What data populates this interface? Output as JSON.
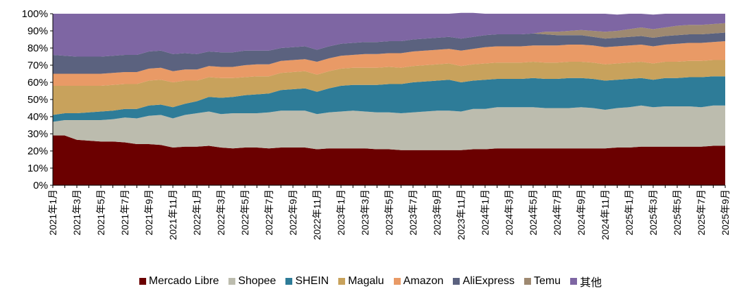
{
  "chart_data": {
    "type": "area",
    "stacked": true,
    "title": "",
    "xlabel": "",
    "ylabel": "",
    "ylim": [
      0,
      100
    ],
    "yticks": [
      "0%",
      "10%",
      "20%",
      "30%",
      "40%",
      "50%",
      "60%",
      "70%",
      "80%",
      "90%",
      "100%"
    ],
    "x": [
      "2021年1月",
      "2021年2月",
      "2021年3月",
      "2021年4月",
      "2021年5月",
      "2021年6月",
      "2021年7月",
      "2021年8月",
      "2021年9月",
      "2021年10月",
      "2021年11月",
      "2021年12月",
      "2022年1月",
      "2022年2月",
      "2022年3月",
      "2022年4月",
      "2022年5月",
      "2022年6月",
      "2022年7月",
      "2022年8月",
      "2022年9月",
      "2022年10月",
      "2022年11月",
      "2022年12月",
      "2023年1月",
      "2023年2月",
      "2023年3月",
      "2023年4月",
      "2023年5月",
      "2023年6月",
      "2023年7月",
      "2023年8月",
      "2023年9月",
      "2023年10月",
      "2023年11月",
      "2023年12月",
      "2024年1月",
      "2024年2月",
      "2024年3月",
      "2024年4月",
      "2024年5月",
      "2024年6月",
      "2024年7月",
      "2024年8月",
      "2024年9月",
      "2024年10月",
      "2024年11月",
      "2024年12月",
      "2025年1月",
      "2025年2月",
      "2025年3月",
      "2025年4月",
      "2025年5月",
      "2025年6月",
      "2025年7月",
      "2025年8月",
      "2025年9月"
    ],
    "xtick_labels": [
      "2021年1月",
      "2021年3月",
      "2021年5月",
      "2021年7月",
      "2021年9月",
      "2021年11月",
      "2022年1月",
      "2022年3月",
      "2022年5月",
      "2022年7月",
      "2022年9月",
      "2022年11月",
      "2023年1月",
      "2023年3月",
      "2023年5月",
      "2023年7月",
      "2023年9月",
      "2023年11月",
      "2024年1月",
      "2024年3月",
      "2024年5月",
      "2024年7月",
      "2024年9月",
      "2024年11月",
      "2025年1月",
      "2025年3月",
      "2025年5月",
      "2025年7月",
      "2025年9月"
    ],
    "legend_position": "bottom",
    "series": [
      {
        "name": "Mercado Libre",
        "color": "#6b0000",
        "values": [
          29,
          29,
          26.5,
          26,
          25.5,
          25.5,
          25,
          24,
          24,
          23.5,
          22,
          22.5,
          22.5,
          23,
          22,
          21.5,
          22,
          22,
          21.5,
          22,
          22,
          22,
          21,
          21.5,
          21.5,
          21.5,
          21.5,
          21,
          21,
          20.5,
          20.5,
          20.5,
          20.5,
          20.5,
          20.5,
          21,
          21,
          21.5,
          21.5,
          21.5,
          21.5,
          21.5,
          21.5,
          21.5,
          21.5,
          21.5,
          21.5,
          22,
          22,
          22.5,
          22.5,
          22.5,
          22.5,
          22.5,
          22.5,
          23,
          23
        ]
      },
      {
        "name": "Shopee",
        "color": "#bcbcae",
        "values": [
          8,
          9,
          11.5,
          12,
          12.5,
          13,
          14.5,
          15,
          16.5,
          17.5,
          17,
          18.5,
          19.5,
          20,
          19.5,
          20.5,
          20,
          20,
          21,
          21.5,
          21.5,
          21.5,
          20.5,
          21,
          21.5,
          22,
          21.5,
          21.5,
          21.5,
          21.5,
          22,
          22.5,
          23,
          23,
          22.5,
          23.5,
          23.5,
          24,
          24,
          24,
          24,
          23.5,
          23.5,
          23.5,
          24,
          23.5,
          22.5,
          23,
          23.5,
          24,
          23,
          23.5,
          23.5,
          23.5,
          23,
          23.5,
          23.5
        ]
      },
      {
        "name": "SHEIN",
        "color": "#2e7c98",
        "values": [
          4,
          4,
          4,
          4.5,
          5,
          5,
          5,
          5.5,
          6,
          6,
          6.5,
          6.5,
          7,
          8.5,
          9.5,
          9.5,
          10.5,
          11,
          11,
          12,
          12.5,
          13,
          13,
          14,
          15,
          15,
          15.5,
          16,
          16.5,
          17,
          17.5,
          17.5,
          17.5,
          18,
          17,
          16.5,
          17,
          16.5,
          16.5,
          16.5,
          17,
          17,
          17,
          17.5,
          17,
          17,
          17,
          16.5,
          16.5,
          16,
          16,
          16.5,
          16.5,
          17,
          17.5,
          17,
          17
        ]
      },
      {
        "name": "Magalu",
        "color": "#c8a25c",
        "values": [
          17,
          16,
          16,
          15.5,
          15,
          15,
          14.5,
          14.5,
          14.5,
          14.5,
          14.5,
          13.5,
          12,
          11.5,
          11.5,
          11,
          10.5,
          10.5,
          10,
          10,
          10,
          10,
          10,
          10,
          10,
          10,
          10,
          10,
          10,
          9.5,
          9.5,
          9.5,
          9.5,
          9.5,
          9.5,
          9.5,
          9.5,
          9.5,
          9.5,
          9.5,
          9.5,
          9.5,
          9.5,
          9.5,
          9.5,
          9.5,
          9.5,
          9.5,
          9.5,
          9.5,
          9.5,
          9.5,
          9.5,
          9.5,
          9.5,
          9.5,
          9.5
        ]
      },
      {
        "name": "Amazon",
        "color": "#e99a66",
        "values": [
          7,
          7,
          7,
          7,
          7,
          7,
          7,
          7,
          7,
          7,
          6.5,
          6.5,
          6.5,
          6.5,
          6.5,
          6.5,
          7,
          7,
          7,
          7,
          7,
          7,
          7.5,
          7.5,
          7.5,
          7.5,
          8,
          8,
          8,
          8.5,
          8.5,
          8.5,
          8.5,
          8.5,
          9,
          9,
          9.5,
          9.5,
          9.5,
          9.5,
          9.5,
          10,
          10,
          10,
          10,
          10,
          10,
          10,
          10,
          10,
          10,
          10,
          10.5,
          10.5,
          10.5,
          10.5,
          11
        ]
      },
      {
        "name": "AliExpress",
        "color": "#5b627f",
        "values": [
          11,
          10.5,
          10,
          10,
          10,
          10,
          10,
          10,
          10,
          10,
          10,
          9.5,
          9,
          8.5,
          8.5,
          8.5,
          8.5,
          8,
          8,
          7.5,
          7.5,
          7.5,
          7,
          7,
          7,
          7,
          7,
          7,
          7,
          7,
          7,
          7,
          7,
          7,
          7,
          7,
          7,
          7,
          7,
          7,
          7,
          6.5,
          6,
          5.5,
          5.5,
          5,
          5,
          5,
          5,
          5,
          5,
          5,
          5,
          5,
          5,
          5,
          5
        ]
      },
      {
        "name": "Temu",
        "color": "#9e8971",
        "values": [
          0,
          0,
          0,
          0,
          0,
          0,
          0,
          0,
          0,
          0,
          0,
          0,
          0,
          0,
          0,
          0,
          0,
          0,
          0,
          0,
          0,
          0,
          0,
          0,
          0,
          0,
          0,
          0,
          0,
          0,
          0,
          0,
          0,
          0,
          0,
          0,
          0,
          0,
          0,
          0,
          0,
          1.5,
          2,
          2.5,
          3,
          3.5,
          4,
          4,
          4.5,
          5,
          5,
          5,
          5.5,
          5.5,
          5.5,
          5.5,
          5.5
        ]
      },
      {
        "name": "其他",
        "color": "#7e66a3",
        "values": [
          24,
          24.5,
          25,
          25,
          25,
          24.5,
          24,
          24,
          22,
          21.5,
          23.5,
          23,
          23.5,
          22,
          22.5,
          22.5,
          21.5,
          21.5,
          21.5,
          20,
          19.5,
          19,
          21,
          19,
          17.5,
          17,
          16.5,
          16.5,
          16,
          16,
          15,
          14.5,
          14,
          13.5,
          15,
          14,
          12.5,
          12,
          12,
          12,
          11.5,
          10.5,
          10.5,
          10,
          9.5,
          10,
          10.5,
          9.5,
          9,
          8,
          8.5,
          8,
          7,
          6.5,
          6.5,
          6,
          5.5
        ]
      }
    ]
  }
}
